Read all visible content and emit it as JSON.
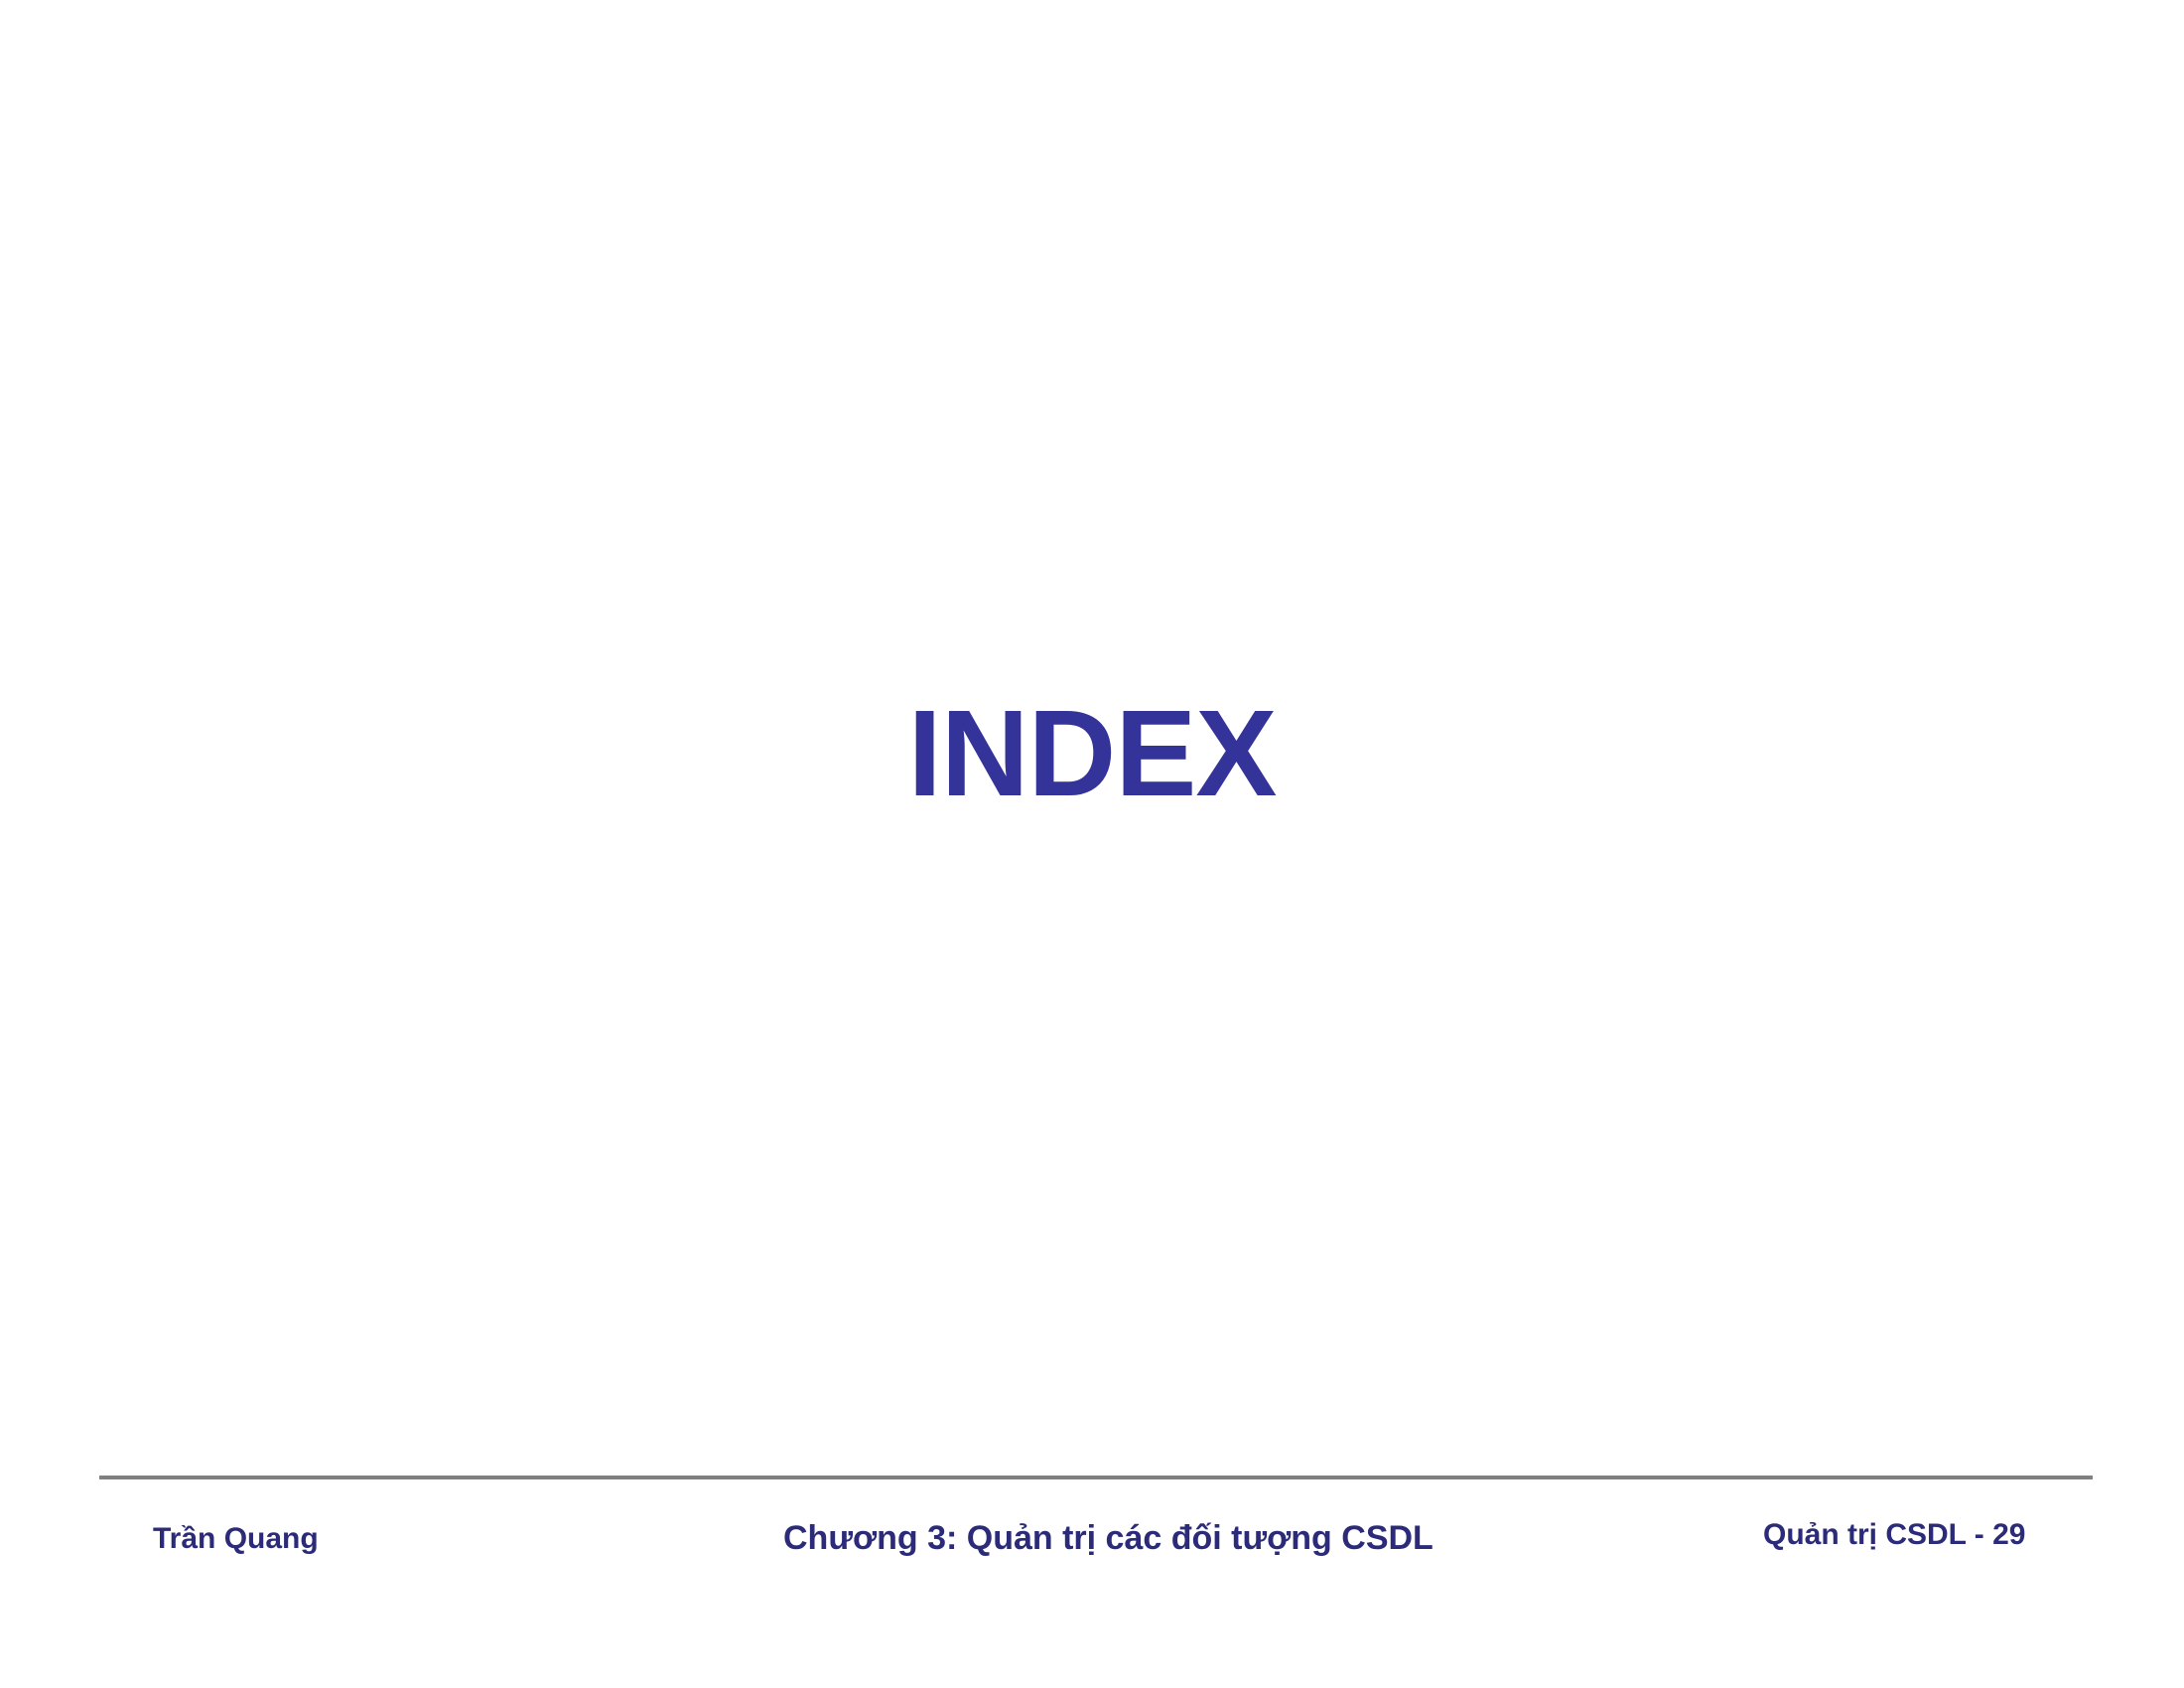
{
  "slide": {
    "title": "INDEX"
  },
  "footer": {
    "author": "Trần Quang",
    "chapter": "Chương 3: Quản trị các đối tượng CSDL",
    "page_label": "Quản trị CSDL - 29"
  },
  "colors": {
    "title": "#333399",
    "footer_text": "#2b2b7a",
    "divider": "#808080",
    "background": "#ffffff"
  }
}
